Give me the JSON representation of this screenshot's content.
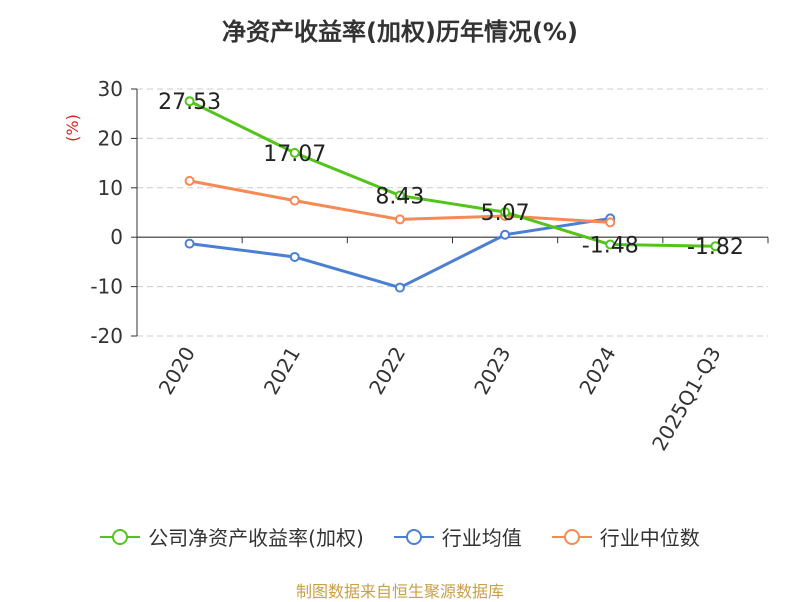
{
  "title": "净资产收益率(加权)历年情况(%)",
  "source_note": "制图数据来自恒生聚源数据库",
  "chart_data": {
    "type": "line",
    "categories": [
      "2020",
      "2021",
      "2022",
      "2023",
      "2024",
      "2025Q1-Q3"
    ],
    "ylabel": "(%)",
    "ylim": [
      -20,
      30
    ],
    "yticks": [
      30,
      20,
      10,
      0,
      -10,
      -20
    ],
    "grid": true,
    "legend_position": "bottom",
    "series": [
      {
        "name": "公司净资产收益率(加权)",
        "color": "#52c41a",
        "values": [
          27.53,
          17.07,
          8.43,
          5.07,
          -1.48,
          -1.82
        ],
        "data_labels": [
          "27.53",
          "17.07",
          "8.43",
          "5.07",
          "-1.48",
          "-1.82"
        ]
      },
      {
        "name": "行业均值",
        "color": "#4a7fd4",
        "values": [
          -1.3,
          -4.0,
          -10.2,
          0.5,
          3.8,
          null
        ]
      },
      {
        "name": "行业中位数",
        "color": "#f58a55",
        "values": [
          11.4,
          7.4,
          3.6,
          4.3,
          3.0,
          null
        ]
      }
    ]
  }
}
